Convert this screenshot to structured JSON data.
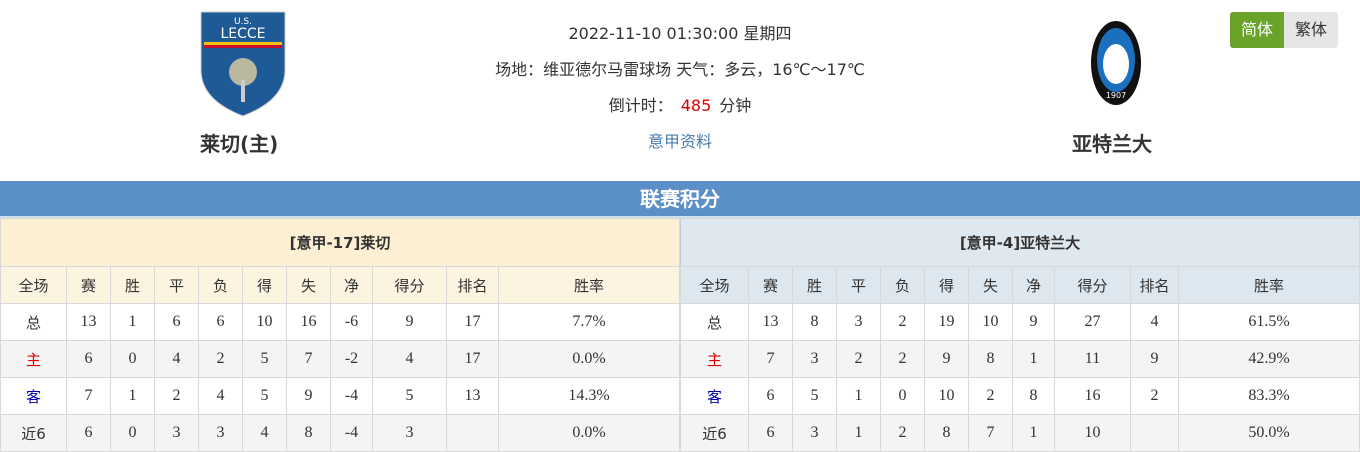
{
  "match": {
    "datetime": "2022-11-10 01:30:00 星期四",
    "venue_line": "场地：维亚德尔马雷球场 天气：多云，16℃～17℃",
    "countdown_label": "倒计时：",
    "countdown_value": "485",
    "countdown_unit": "分钟",
    "league_link": "意甲资料"
  },
  "home": {
    "name": "莱切(主)",
    "logo_text": "U.S. LECCE 1908",
    "colors": {
      "primary": "#1e5a96",
      "accent": "#f4c20d"
    }
  },
  "away": {
    "name": "亚特兰大",
    "logo_text": "ATALANTA 1907",
    "colors": {
      "primary": "#1a6fbf",
      "accent": "#111111"
    }
  },
  "lang": {
    "simplified": "简体",
    "traditional": "繁体",
    "active": "简体",
    "active_color": "#6aa329"
  },
  "section_title": "联赛积分",
  "columns": [
    "全场",
    "赛",
    "胜",
    "平",
    "负",
    "得",
    "失",
    "净",
    "得分",
    "排名",
    "胜率"
  ],
  "tables": [
    {
      "title": "[意甲-17]莱切",
      "rows": [
        [
          "总",
          "13",
          "1",
          "6",
          "6",
          "10",
          "16",
          "-6",
          "9",
          "17",
          "7.7%"
        ],
        [
          "主",
          "6",
          "0",
          "4",
          "2",
          "5",
          "7",
          "-2",
          "4",
          "17",
          "0.0%"
        ],
        [
          "客",
          "7",
          "1",
          "2",
          "4",
          "5",
          "9",
          "-4",
          "5",
          "13",
          "14.3%"
        ],
        [
          "近6",
          "6",
          "0",
          "3",
          "3",
          "4",
          "8",
          "-4",
          "3",
          "",
          "0.0%"
        ]
      ]
    },
    {
      "title": "[意甲-4]亚特兰大",
      "rows": [
        [
          "总",
          "13",
          "8",
          "3",
          "2",
          "19",
          "10",
          "9",
          "27",
          "4",
          "61.5%"
        ],
        [
          "主",
          "7",
          "3",
          "2",
          "2",
          "9",
          "8",
          "1",
          "11",
          "9",
          "42.9%"
        ],
        [
          "客",
          "6",
          "5",
          "1",
          "0",
          "10",
          "2",
          "8",
          "16",
          "2",
          "83.3%"
        ],
        [
          "近6",
          "6",
          "3",
          "1",
          "2",
          "8",
          "7",
          "1",
          "10",
          "",
          "50.0%"
        ]
      ]
    }
  ]
}
